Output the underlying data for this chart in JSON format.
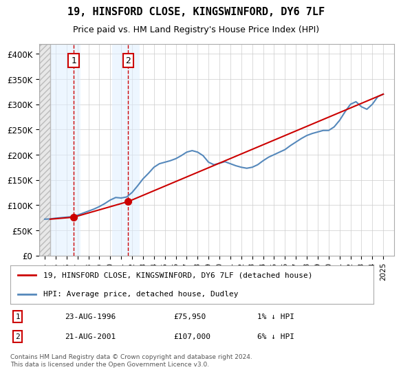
{
  "title": "19, HINSFORD CLOSE, KINGSWINFORD, DY6 7LF",
  "subtitle": "Price paid vs. HM Land Registry's House Price Index (HPI)",
  "ylabel_prefix": "£",
  "yticks": [
    0,
    50000,
    100000,
    150000,
    200000,
    250000,
    300000,
    350000,
    400000
  ],
  "ytick_labels": [
    "£0",
    "£50K",
    "£100K",
    "£150K",
    "£200K",
    "£250K",
    "£300K",
    "£350K",
    "£400K"
  ],
  "xlim_start": 1993.5,
  "xlim_end": 2026.0,
  "ylim": [
    0,
    420000
  ],
  "hatch_end_year": 1994.5,
  "sale1": {
    "year": 1996.65,
    "price": 75950,
    "label": "1",
    "date": "23-AUG-1996",
    "hpi_diff": "1% ↓ HPI"
  },
  "sale2": {
    "year": 2001.65,
    "price": 107000,
    "label": "2",
    "date": "21-AUG-2001",
    "hpi_diff": "6% ↓ HPI"
  },
  "sale_color": "#cc0000",
  "hpi_color": "#6699cc",
  "hpi_line_color": "#5588bb",
  "background_color": "#ffffff",
  "plot_bg_color": "#ffffff",
  "hatch_color": "#cccccc",
  "sale_region_color": "#ddeeff",
  "dashed_line_color": "#cc0000",
  "legend_label1": "19, HINSFORD CLOSE, KINGSWINFORD, DY6 7LF (detached house)",
  "legend_label2": "HPI: Average price, detached house, Dudley",
  "footnote": "Contains HM Land Registry data © Crown copyright and database right 2024.\nThis data is licensed under the Open Government Licence v3.0.",
  "hpi_years": [
    1994,
    1994.5,
    1995,
    1995.5,
    1996,
    1996.5,
    1997,
    1997.5,
    1998,
    1998.5,
    1999,
    1999.5,
    2000,
    2000.5,
    2001,
    2001.5,
    2002,
    2002.5,
    2003,
    2003.5,
    2004,
    2004.5,
    2005,
    2005.5,
    2006,
    2006.5,
    2007,
    2007.5,
    2008,
    2008.5,
    2009,
    2009.5,
    2010,
    2010.5,
    2011,
    2011.5,
    2012,
    2012.5,
    2013,
    2013.5,
    2014,
    2014.5,
    2015,
    2015.5,
    2016,
    2016.5,
    2017,
    2017.5,
    2018,
    2018.5,
    2019,
    2019.5,
    2020,
    2020.5,
    2021,
    2021.5,
    2022,
    2022.5,
    2023,
    2023.5,
    2024,
    2024.5,
    2025
  ],
  "hpi_values": [
    72000,
    72500,
    74000,
    75000,
    76000,
    77000,
    80000,
    84000,
    88000,
    92000,
    97000,
    103000,
    110000,
    115000,
    114000,
    116000,
    125000,
    138000,
    152000,
    163000,
    175000,
    182000,
    185000,
    188000,
    192000,
    198000,
    205000,
    208000,
    205000,
    198000,
    185000,
    180000,
    183000,
    186000,
    182000,
    178000,
    175000,
    173000,
    175000,
    180000,
    188000,
    195000,
    200000,
    205000,
    210000,
    218000,
    225000,
    232000,
    238000,
    242000,
    245000,
    248000,
    248000,
    255000,
    268000,
    285000,
    300000,
    305000,
    295000,
    290000,
    300000,
    315000,
    320000
  ],
  "xtick_years": [
    1994,
    1995,
    1996,
    1997,
    1998,
    1999,
    2000,
    2001,
    2002,
    2003,
    2004,
    2005,
    2006,
    2007,
    2008,
    2009,
    2010,
    2011,
    2012,
    2013,
    2014,
    2015,
    2016,
    2017,
    2018,
    2019,
    2020,
    2021,
    2022,
    2023,
    2024,
    2025
  ]
}
